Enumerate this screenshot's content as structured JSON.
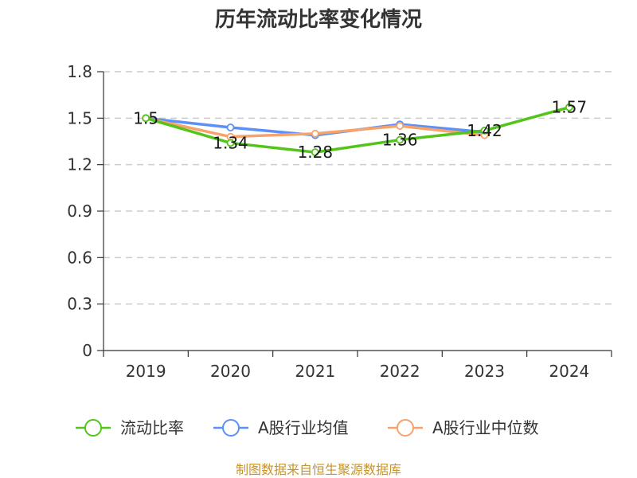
{
  "chart_data": {
    "type": "line",
    "title": "历年流动比率变化情况",
    "categories": [
      "2019",
      "2020",
      "2021",
      "2022",
      "2023",
      "2024"
    ],
    "ylim": [
      0,
      1.8
    ],
    "yticks": [
      "0",
      "0.3",
      "0.6",
      "0.9",
      "1.2",
      "1.5",
      "1.8"
    ],
    "grid": true,
    "legend_position": "bottom",
    "series": [
      {
        "name": "流动比率",
        "color": "#52c41a",
        "values": [
          1.5,
          1.34,
          1.28,
          1.36,
          1.42,
          1.57
        ],
        "labels": [
          "1.5",
          "1.34",
          "1.28",
          "1.36",
          "1.42",
          "1.57"
        ]
      },
      {
        "name": "A股行业均值",
        "color": "#5b8ff9",
        "values": [
          1.5,
          1.44,
          1.39,
          1.46,
          1.41,
          null
        ]
      },
      {
        "name": "A股行业中位数",
        "color": "#f7a26b",
        "values": [
          1.5,
          1.38,
          1.4,
          1.45,
          1.39,
          null
        ]
      }
    ]
  },
  "source": "制图数据来自恒生聚源数据库"
}
